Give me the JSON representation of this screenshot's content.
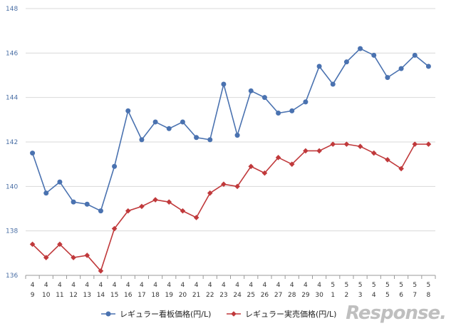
{
  "chart_data": {
    "type": "line",
    "ylim": [
      136,
      148
    ],
    "yticks": [
      "136",
      "138",
      "140",
      "142",
      "144",
      "146",
      "148"
    ],
    "categories": [
      [
        "4",
        "9"
      ],
      [
        "4",
        "10"
      ],
      [
        "4",
        "11"
      ],
      [
        "4",
        "12"
      ],
      [
        "4",
        "13"
      ],
      [
        "4",
        "14"
      ],
      [
        "4",
        "15"
      ],
      [
        "4",
        "16"
      ],
      [
        "4",
        "17"
      ],
      [
        "4",
        "18"
      ],
      [
        "4",
        "19"
      ],
      [
        "4",
        "20"
      ],
      [
        "4",
        "21"
      ],
      [
        "4",
        "22"
      ],
      [
        "4",
        "23"
      ],
      [
        "4",
        "24"
      ],
      [
        "4",
        "25"
      ],
      [
        "4",
        "26"
      ],
      [
        "4",
        "27"
      ],
      [
        "4",
        "28"
      ],
      [
        "4",
        "29"
      ],
      [
        "4",
        "30"
      ],
      [
        "5",
        "1"
      ],
      [
        "5",
        "2"
      ],
      [
        "5",
        "3"
      ],
      [
        "5",
        "4"
      ],
      [
        "5",
        "5"
      ],
      [
        "5",
        "6"
      ],
      [
        "5",
        "7"
      ],
      [
        "5",
        "8"
      ]
    ],
    "series": [
      {
        "name": "レギュラー看板価格(円/L)",
        "color": "#4a72b0",
        "marker": "circle",
        "values": [
          141.5,
          139.7,
          140.2,
          139.3,
          139.2,
          138.9,
          140.9,
          143.4,
          142.1,
          142.9,
          142.6,
          142.9,
          142.2,
          142.1,
          144.6,
          142.3,
          144.3,
          144.0,
          143.3,
          143.4,
          143.8,
          145.4,
          144.6,
          145.6,
          146.2,
          145.9,
          144.9,
          145.3,
          145.9,
          145.4
        ]
      },
      {
        "name": "レギュラー実売価格(円/L)",
        "color": "#c0393b",
        "marker": "diamond",
        "values": [
          137.4,
          136.8,
          137.4,
          136.8,
          136.9,
          136.2,
          138.1,
          138.9,
          139.1,
          139.4,
          139.3,
          138.9,
          138.6,
          139.7,
          140.1,
          140.0,
          140.9,
          140.6,
          141.3,
          141.0,
          141.6,
          141.6,
          141.9,
          141.9,
          141.8,
          141.5,
          141.2,
          140.8,
          141.9,
          141.9
        ]
      }
    ],
    "grid": true,
    "legend": "bottom"
  },
  "watermark": "Response."
}
